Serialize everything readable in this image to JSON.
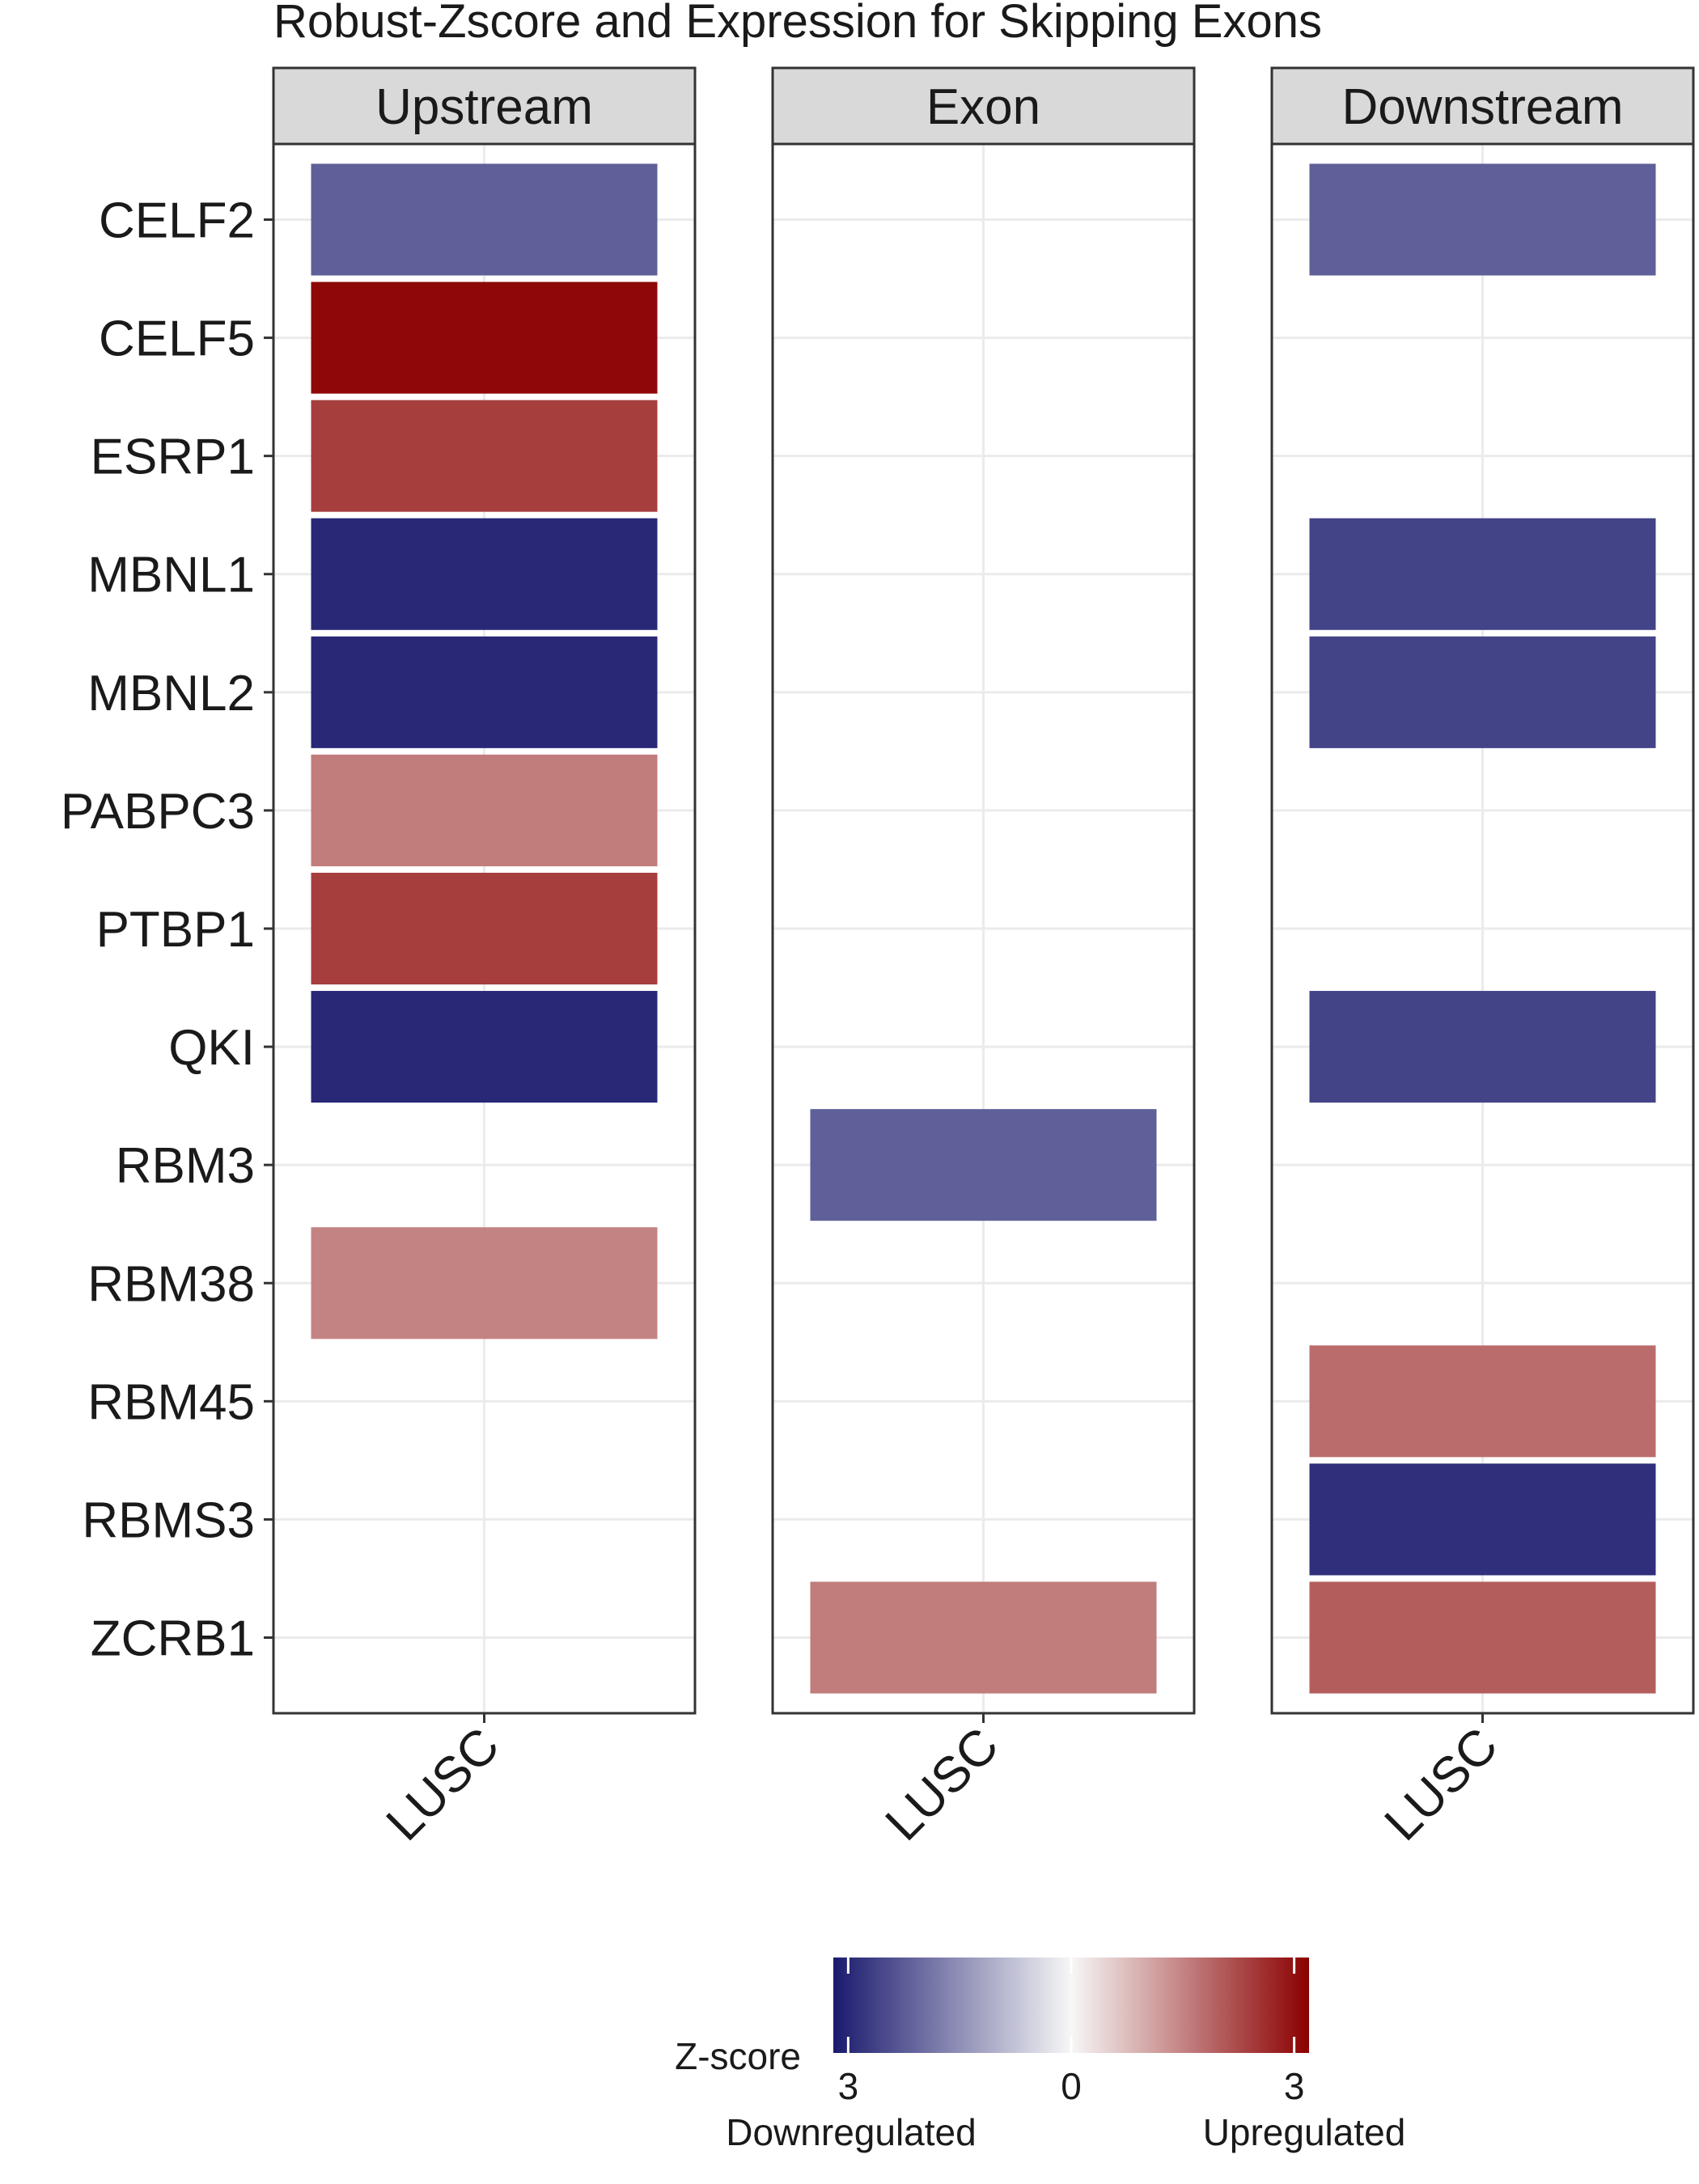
{
  "chart_data": {
    "type": "heatmap",
    "title": "Robust-Zscore and Expression for Skipping Exons",
    "facets": [
      "Upstream",
      "Exon",
      "Downstream"
    ],
    "x_categories": [
      "LUSC"
    ],
    "genes": [
      "CELF2",
      "CELF5",
      "ESRP1",
      "MBNL1",
      "MBNL2",
      "PABPC3",
      "PTBP1",
      "QKI",
      "RBM3",
      "RBM38",
      "RBM45",
      "RBMS3",
      "ZCRB1"
    ],
    "cells": [
      {
        "facet": "Upstream",
        "gene": "CELF2",
        "x": "LUSC",
        "zscore": -2.2
      },
      {
        "facet": "Upstream",
        "gene": "CELF5",
        "x": "LUSC",
        "zscore": 3.1
      },
      {
        "facet": "Upstream",
        "gene": "ESRP1",
        "x": "LUSC",
        "zscore": 2.4
      },
      {
        "facet": "Upstream",
        "gene": "MBNL1",
        "x": "LUSC",
        "zscore": -3.0
      },
      {
        "facet": "Upstream",
        "gene": "MBNL2",
        "x": "LUSC",
        "zscore": -3.0
      },
      {
        "facet": "Upstream",
        "gene": "PABPC3",
        "x": "LUSC",
        "zscore": 1.6
      },
      {
        "facet": "Upstream",
        "gene": "PTBP1",
        "x": "LUSC",
        "zscore": 2.4
      },
      {
        "facet": "Upstream",
        "gene": "QKI",
        "x": "LUSC",
        "zscore": -3.0
      },
      {
        "facet": "Upstream",
        "gene": "RBM38",
        "x": "LUSC",
        "zscore": 1.5
      },
      {
        "facet": "Exon",
        "gene": "RBM3",
        "x": "LUSC",
        "zscore": -2.2
      },
      {
        "facet": "Exon",
        "gene": "ZCRB1",
        "x": "LUSC",
        "zscore": 1.6
      },
      {
        "facet": "Downstream",
        "gene": "CELF2",
        "x": "LUSC",
        "zscore": -2.2
      },
      {
        "facet": "Downstream",
        "gene": "MBNL1",
        "x": "LUSC",
        "zscore": -2.6
      },
      {
        "facet": "Downstream",
        "gene": "MBNL2",
        "x": "LUSC",
        "zscore": -2.6
      },
      {
        "facet": "Downstream",
        "gene": "QKI",
        "x": "LUSC",
        "zscore": -2.6
      },
      {
        "facet": "Downstream",
        "gene": "RBM45",
        "x": "LUSC",
        "zscore": 1.8
      },
      {
        "facet": "Downstream",
        "gene": "RBMS3",
        "x": "LUSC",
        "zscore": -2.9
      },
      {
        "facet": "Downstream",
        "gene": "ZCRB1",
        "x": "LUSC",
        "zscore": 2.0
      }
    ],
    "legend": {
      "title": "Z-score",
      "scale": {
        "min": -3.2,
        "max": 3.2
      },
      "ticks": [
        {
          "value": -3,
          "label": "3"
        },
        {
          "value": 0,
          "label": "0"
        },
        {
          "value": 3,
          "label": "3"
        }
      ],
      "low_label": "Downregulated",
      "high_label": "Upregulated",
      "colors": {
        "low": "#1a1a6e",
        "mid": "#f7f7f7",
        "high": "#8b0000"
      }
    }
  }
}
